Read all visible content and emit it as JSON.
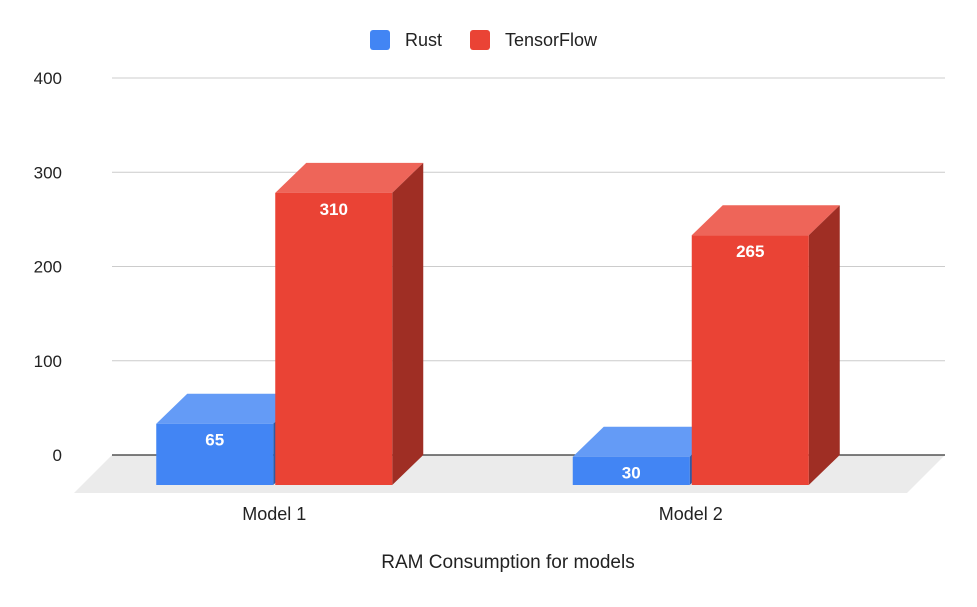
{
  "chart_data": {
    "type": "bar",
    "title": "",
    "xlabel": "RAM Consumption for models",
    "ylabel": "",
    "categories": [
      "Model 1",
      "Model 2"
    ],
    "series": [
      {
        "name": "Rust",
        "values": [
          65,
          30
        ],
        "color": "#4285F4"
      },
      {
        "name": "TensorFlow",
        "values": [
          310,
          265
        ],
        "color": "#EA4335"
      }
    ],
    "ylim": [
      0,
      400
    ],
    "yticks": [
      "0",
      "100",
      "200",
      "300",
      "400"
    ],
    "grid": true,
    "legend": "top-center",
    "style": "3d",
    "data_labels": true
  }
}
